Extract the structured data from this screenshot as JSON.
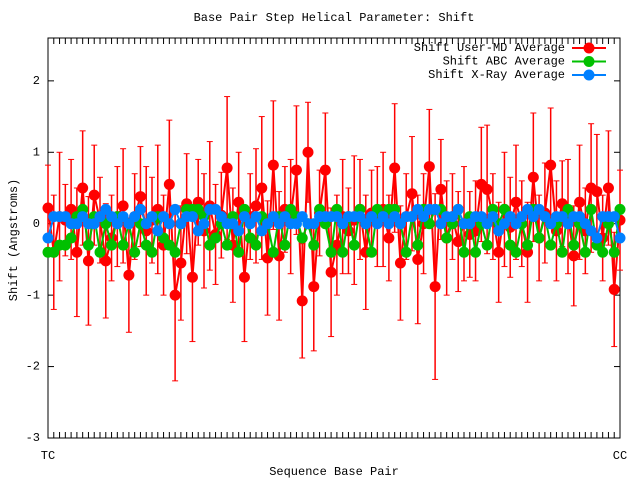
{
  "chart_data": {
    "type": "line",
    "title": "Base Pair Step Helical Parameter: Shift",
    "xlabel": "Sequence Base Pair",
    "ylabel": "Shift (Angstroms)",
    "ylim": [
      -3,
      2.6
    ],
    "yticks": [
      -3,
      -2,
      -1,
      0,
      1,
      2
    ],
    "legend": "top-right",
    "categories": [
      "TC",
      null,
      null,
      null,
      null,
      null,
      null,
      null,
      null,
      null,
      null,
      null,
      null,
      null,
      null,
      null,
      null,
      null,
      null,
      null,
      null,
      null,
      null,
      null,
      null,
      null,
      null,
      null,
      null,
      null,
      null,
      null,
      null,
      null,
      null,
      null,
      null,
      null,
      null,
      null,
      null,
      null,
      null,
      null,
      null,
      null,
      null,
      null,
      null,
      null,
      null,
      null,
      null,
      null,
      null,
      null,
      null,
      null,
      null,
      null,
      null,
      null,
      null,
      null,
      null,
      null,
      null,
      null,
      null,
      null,
      null,
      null,
      null,
      null,
      null,
      null,
      null,
      null,
      null,
      null,
      null,
      null,
      null,
      null,
      null,
      null,
      null,
      null,
      null,
      null,
      null,
      null,
      null,
      null,
      null,
      null,
      null,
      null,
      null,
      "CC"
    ],
    "series": [
      {
        "name": "Shift User-MD Average",
        "color": "#ff0000",
        "values": [
          0.22,
          -0.4,
          0.1,
          0.05,
          0.2,
          -0.4,
          0.5,
          -0.52,
          0.4,
          0.05,
          -0.52,
          -0.2,
          0.1,
          0.25,
          -0.72,
          0.1,
          0.38,
          -0.1,
          0.05,
          0.2,
          -0.3,
          0.55,
          -1.0,
          -0.55,
          0.28,
          -0.75,
          0.3,
          -0.1,
          0.25,
          -0.15,
          0.12,
          0.78,
          -0.3,
          0.3,
          -0.75,
          0.1,
          0.25,
          0.5,
          -0.48,
          0.82,
          -0.45,
          0.2,
          0.1,
          0.75,
          -1.08,
          1.0,
          -0.88,
          0.15,
          0.75,
          -0.68,
          -0.3,
          0.1,
          -0.1,
          0.05,
          0.2,
          -0.4,
          0.15,
          0.1,
          0.2,
          -0.2,
          0.78,
          -0.55,
          0.1,
          0.42,
          -0.5,
          0.0,
          0.8,
          -0.88,
          0.48,
          -0.2,
          0.1,
          -0.25,
          0.0,
          -0.15,
          -0.1,
          0.55,
          0.48,
          0.1,
          -0.4,
          0.2,
          -0.05,
          0.3,
          0.0,
          -0.4,
          0.65,
          -0.2,
          0.15,
          0.82,
          -0.1,
          0.28,
          0.1,
          -0.45,
          0.3,
          -0.1,
          0.5,
          0.45,
          -0.2,
          0.5,
          -0.92,
          0.05
        ],
        "errors": [
          0.6,
          0.8,
          0.9,
          0.5,
          0.7,
          0.9,
          0.8,
          0.9,
          0.7,
          0.6,
          0.8,
          0.6,
          0.7,
          0.8,
          0.8,
          0.6,
          0.7,
          0.9,
          0.6,
          0.9,
          0.7,
          0.9,
          1.2,
          0.8,
          0.7,
          0.9,
          0.6,
          0.8,
          0.9,
          0.7,
          0.6,
          1.0,
          0.8,
          0.7,
          0.9,
          0.6,
          0.8,
          1.0,
          0.8,
          0.9,
          0.9,
          0.6,
          0.8,
          0.9,
          0.8,
          0.7,
          0.9,
          0.6,
          0.8,
          0.9,
          0.7,
          0.8,
          0.6,
          0.9,
          0.7,
          0.8,
          0.6,
          0.7,
          0.8,
          0.6,
          0.9,
          0.8,
          0.6,
          0.8,
          0.9,
          0.7,
          0.8,
          1.3,
          0.7,
          0.8,
          0.6,
          0.7,
          0.8,
          0.6,
          0.7,
          0.8,
          0.9,
          0.6,
          0.7,
          0.8,
          0.7,
          0.8,
          0.6,
          0.7,
          0.9,
          0.6,
          0.7,
          0.8,
          0.7,
          0.6,
          0.8,
          0.7,
          0.8,
          0.6,
          0.9,
          0.8,
          0.6,
          0.8,
          0.8,
          0.7
        ]
      },
      {
        "name": "Shift ABC Average",
        "color": "#00c000",
        "values": [
          -0.4,
          -0.4,
          -0.3,
          -0.3,
          -0.2,
          0.1,
          0.2,
          -0.3,
          0.1,
          -0.4,
          0.0,
          -0.3,
          0.1,
          -0.3,
          0.0,
          -0.4,
          0.0,
          -0.3,
          -0.4,
          0.1,
          -0.2,
          -0.3,
          -0.4,
          0.0,
          0.2,
          0.2,
          0.2,
          0.1,
          -0.3,
          -0.2,
          0.0,
          -0.3,
          0.1,
          -0.4,
          0.2,
          -0.2,
          -0.3,
          0.1,
          0.0,
          -0.4,
          0.1,
          -0.3,
          0.2,
          0.1,
          -0.2,
          0.0,
          -0.3,
          0.2,
          0.0,
          -0.4,
          0.2,
          -0.4,
          0.1,
          -0.3,
          0.2,
          0.0,
          -0.4,
          0.2,
          0.1,
          0.2,
          0.2,
          0.0,
          -0.4,
          0.1,
          -0.3,
          0.2,
          0.0,
          0.2,
          0.2,
          -0.2,
          0.0,
          0.2,
          -0.4,
          0.1,
          -0.4,
          0.0,
          -0.3,
          0.2,
          0.0,
          0.2,
          -0.3,
          -0.4,
          0.0,
          -0.3,
          0.2,
          -0.2,
          0.1,
          -0.3,
          0.0,
          -0.4,
          0.2,
          -0.3,
          0.0,
          -0.4,
          0.2,
          -0.3,
          -0.4,
          0.0,
          -0.4,
          0.2
        ]
      },
      {
        "name": "Shift X-Ray Average",
        "color": "#0080ff",
        "values": [
          -0.2,
          0.1,
          0.1,
          0.1,
          0.0,
          0.0,
          0.1,
          0.0,
          0.0,
          0.1,
          0.2,
          0.1,
          0.0,
          0.1,
          0.0,
          0.1,
          0.2,
          0.0,
          0.1,
          -0.1,
          0.1,
          0.0,
          0.2,
          0.0,
          0.1,
          0.1,
          -0.1,
          0.0,
          0.2,
          0.2,
          0.1,
          0.0,
          0.0,
          -0.1,
          0.1,
          0.0,
          0.1,
          -0.1,
          0.0,
          0.1,
          0.0,
          0.1,
          0.0,
          0.0,
          0.1,
          0.0,
          0.0,
          0.1,
          0.1,
          0.1,
          0.1,
          0.0,
          0.1,
          0.1,
          0.1,
          0.0,
          0.1,
          0.0,
          0.1,
          0.0,
          0.1,
          0.0,
          0.1,
          0.1,
          0.2,
          0.1,
          0.2,
          0.2,
          0.0,
          0.1,
          0.1,
          0.2,
          0.0,
          0.0,
          0.1,
          0.1,
          0.0,
          0.1,
          -0.1,
          0.0,
          0.1,
          0.0,
          0.1,
          0.2,
          0.1,
          0.2,
          0.1,
          0.0,
          0.1,
          0.1,
          0.0,
          0.1,
          0.1,
          0.0,
          -0.1,
          -0.2,
          0.1,
          0.1,
          0.1,
          -0.2
        ]
      }
    ]
  }
}
